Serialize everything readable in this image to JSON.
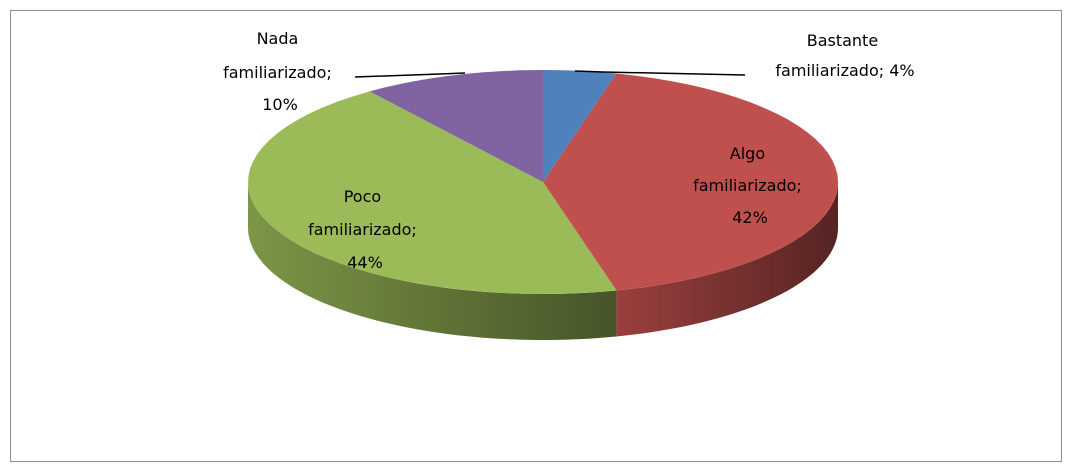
{
  "chart_data": {
    "type": "pie",
    "values": [
      4,
      42,
      44,
      10
    ],
    "value_labels": [
      "Bastante familiarizado; 4%",
      "Algo familiarizado; 42%",
      "Poco familiarizado; 44%",
      "Nada familiarizado; 10%"
    ],
    "colors": [
      "#4f81bd",
      "#c0504d",
      "#9bbb59",
      "#8064a2"
    ]
  }
}
